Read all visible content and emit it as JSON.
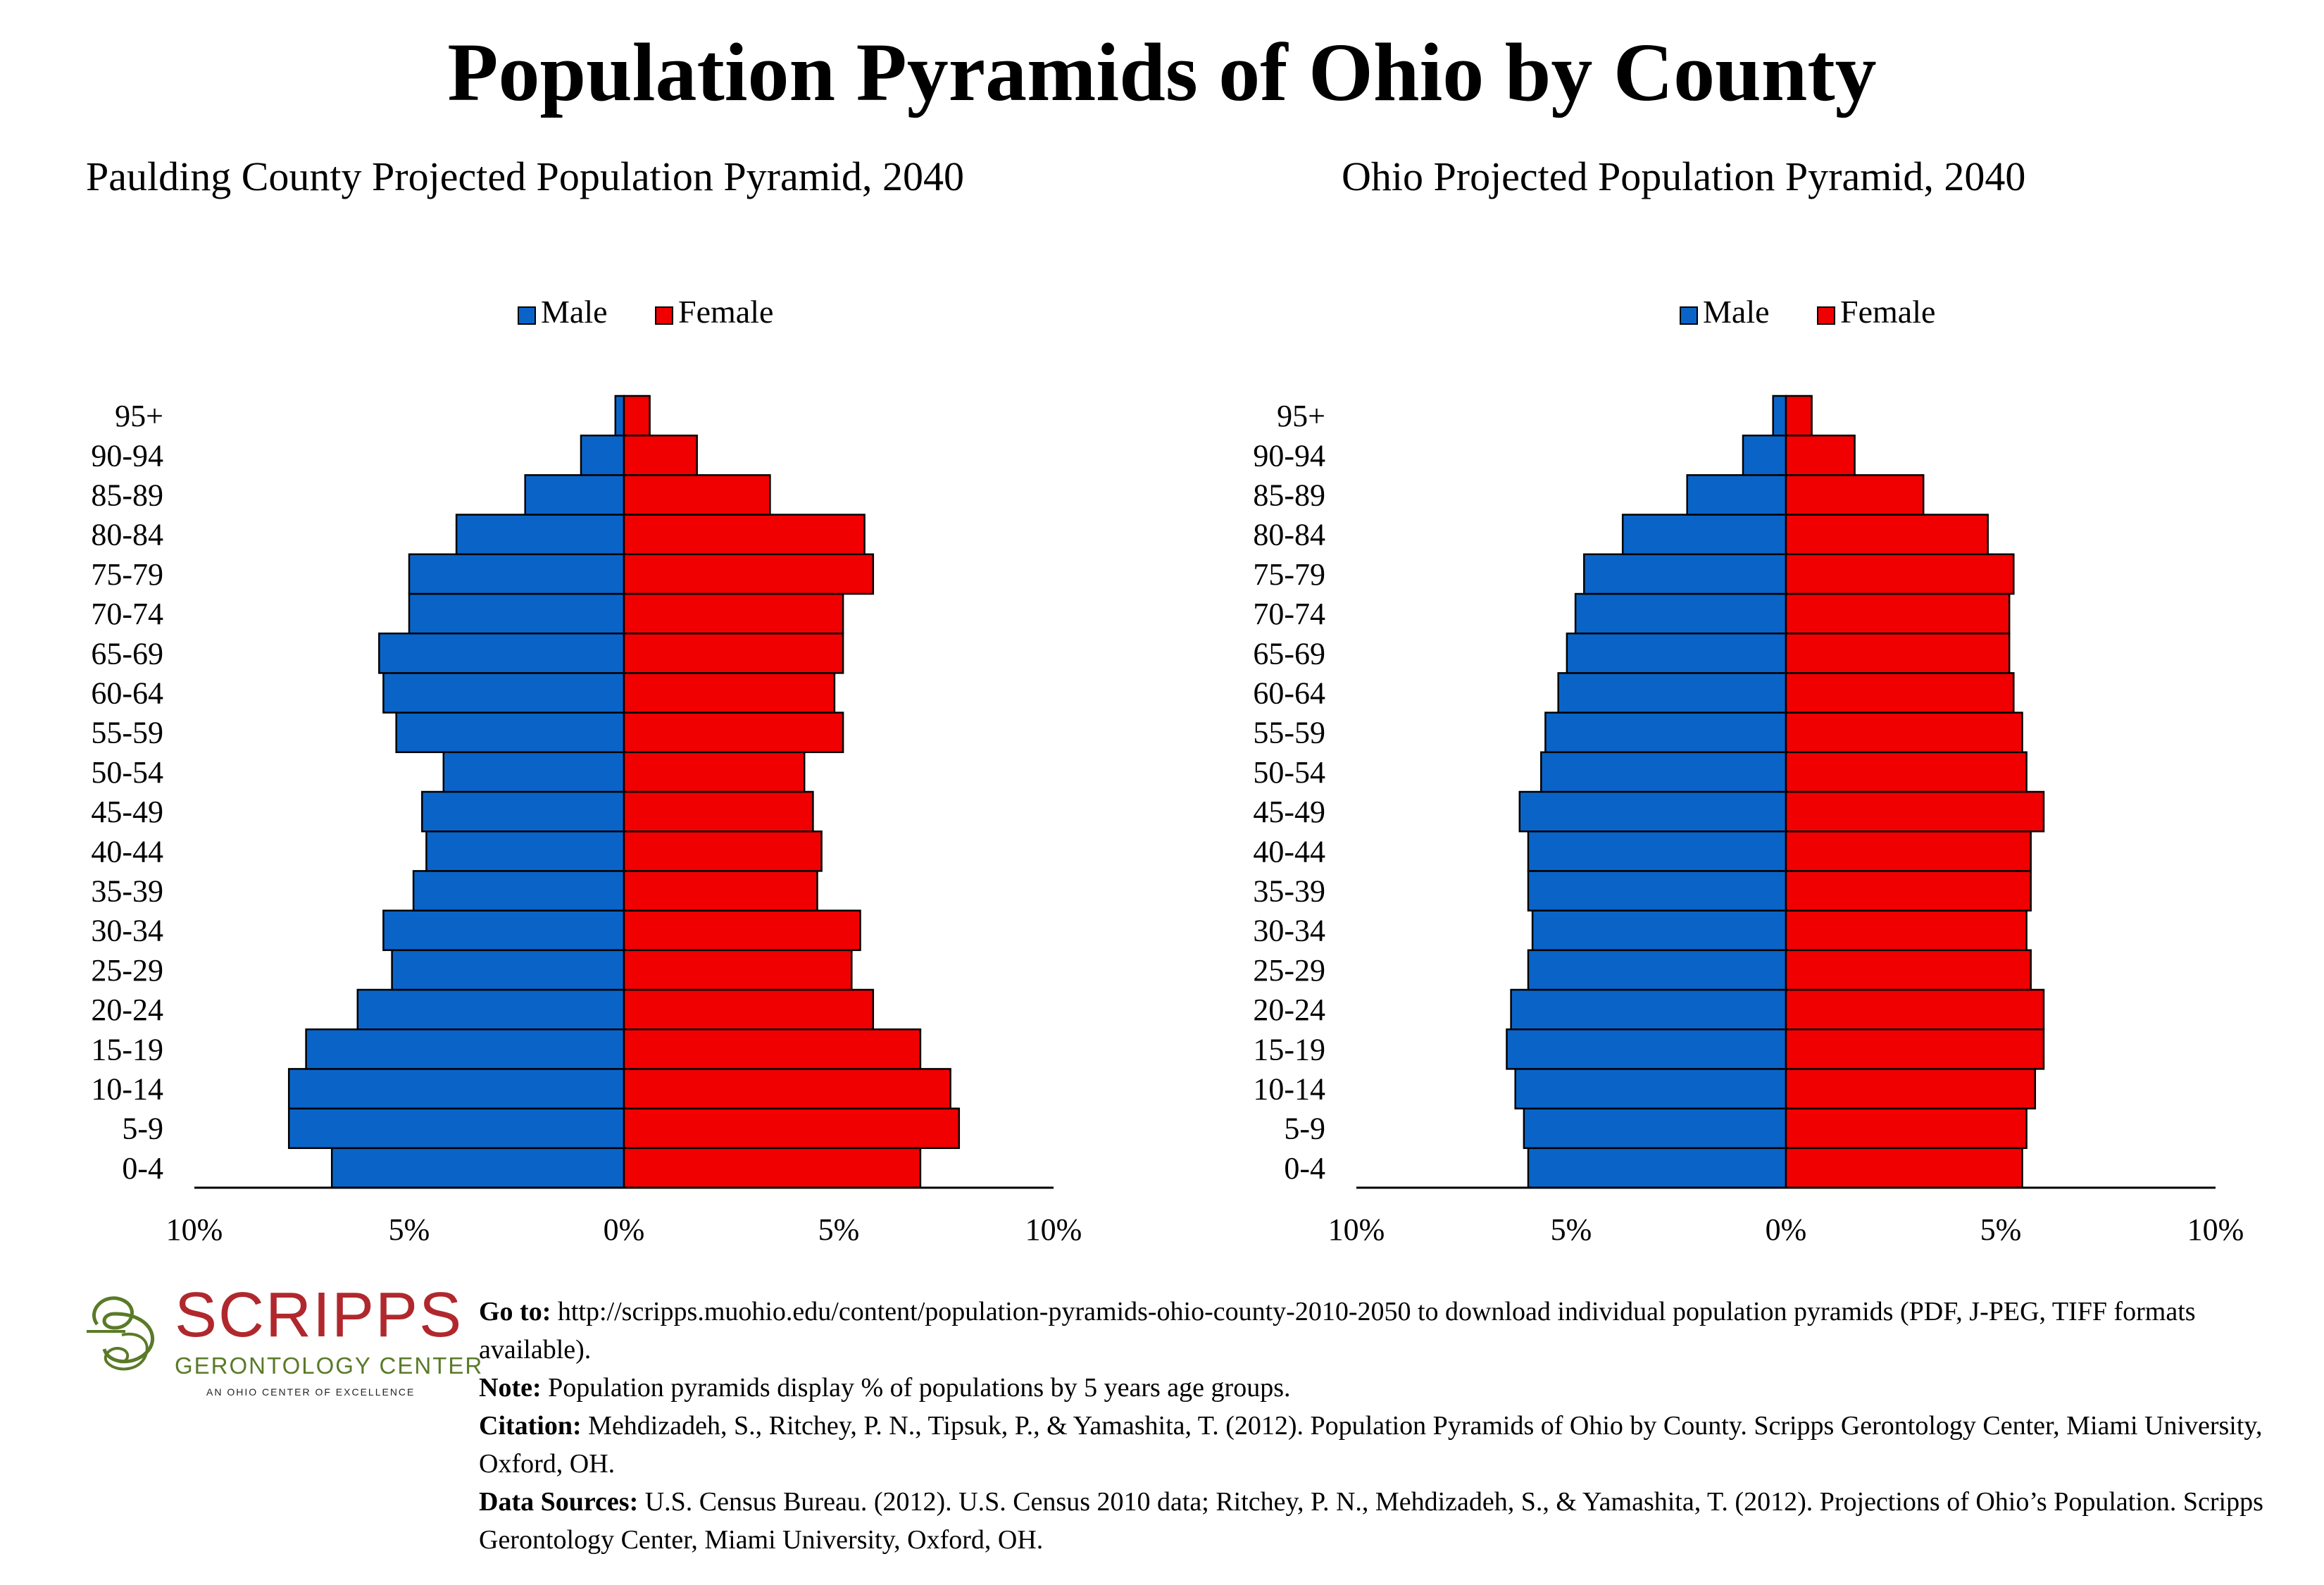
{
  "title": "Population Pyramids of Ohio by County",
  "colors": {
    "male": "#0a64c8",
    "female": "#f00000"
  },
  "chart_data": [
    {
      "type": "bar",
      "orientation": "population-pyramid",
      "title": "Paulding County Projected Population Pyramid, 2040",
      "categories": [
        "0-4",
        "5-9",
        "10-14",
        "15-19",
        "20-24",
        "25-29",
        "30-34",
        "35-39",
        "40-44",
        "45-49",
        "50-54",
        "55-59",
        "60-64",
        "65-69",
        "70-74",
        "75-79",
        "80-84",
        "85-89",
        "90-94",
        "95+"
      ],
      "series": [
        {
          "name": "Male",
          "values": [
            6.8,
            7.8,
            7.8,
            7.4,
            6.2,
            5.4,
            5.6,
            4.9,
            4.6,
            4.7,
            4.2,
            5.3,
            5.6,
            5.7,
            5.0,
            5.0,
            3.9,
            2.3,
            1.0,
            0.2
          ]
        },
        {
          "name": "Female",
          "values": [
            6.9,
            7.8,
            7.6,
            6.9,
            5.8,
            5.3,
            5.5,
            4.5,
            4.6,
            4.4,
            4.2,
            5.1,
            4.9,
            5.1,
            5.1,
            5.8,
            5.6,
            3.4,
            1.7,
            0.6
          ]
        }
      ],
      "xlim": [
        -10,
        10
      ],
      "tick_labels": [
        "10%",
        "5%",
        "0%",
        "5%",
        "10%"
      ],
      "legend": [
        "Male",
        "Female"
      ],
      "legend_position": "top-center"
    },
    {
      "type": "bar",
      "orientation": "population-pyramid",
      "title": "Ohio Projected Population Pyramid, 2040",
      "categories": [
        "0-4",
        "5-9",
        "10-14",
        "15-19",
        "20-24",
        "25-29",
        "30-34",
        "35-39",
        "40-44",
        "45-49",
        "50-54",
        "55-59",
        "60-64",
        "65-69",
        "70-74",
        "75-79",
        "80-84",
        "85-89",
        "90-94",
        "95+"
      ],
      "series": [
        {
          "name": "Male",
          "values": [
            6.0,
            6.1,
            6.3,
            6.5,
            6.4,
            6.0,
            5.9,
            6.0,
            6.0,
            6.2,
            5.7,
            5.6,
            5.3,
            5.1,
            4.9,
            4.7,
            3.8,
            2.3,
            1.0,
            0.3
          ]
        },
        {
          "name": "Female",
          "values": [
            5.5,
            5.6,
            5.8,
            6.0,
            6.0,
            5.7,
            5.6,
            5.7,
            5.7,
            6.0,
            5.6,
            5.5,
            5.3,
            5.2,
            5.2,
            5.3,
            4.7,
            3.2,
            1.6,
            0.6
          ]
        }
      ],
      "xlim": [
        -10,
        10
      ],
      "tick_labels": [
        "10%",
        "5%",
        "0%",
        "5%",
        "10%"
      ],
      "legend": [
        "Male",
        "Female"
      ],
      "legend_position": "top-center"
    }
  ],
  "logo": {
    "wordmark": "SCRIPPS",
    "subtitle": "GERONTOLOGY CENTER",
    "tagline": "AN OHIO CENTER OF EXCELLENCE"
  },
  "notes": {
    "goto_label": "Go to:",
    "goto_text": "http://scripps.muohio.edu/content/population-pyramids-ohio-county-2010-2050 to download individual population pyramids (PDF, J-PEG, TIFF formats available).",
    "note_label": "Note:",
    "note_text": "Population pyramids display % of populations by 5 years age groups.",
    "citation_label": "Citation:",
    "citation_text": "Mehdizadeh, S., Ritchey, P. N., Tipsuk, P., & Yamashita, T. (2012). Population Pyramids of Ohio by County. Scripps Gerontology Center, Miami University, Oxford, OH.",
    "sources_label": "Data Sources:",
    "sources_text": "U.S. Census Bureau. (2012). U.S. Census 2010 data; Ritchey, P. N., Mehdizadeh, S., & Yamashita, T. (2012). Projections of Ohio’s Population. Scripps Gerontology Center, Miami University, Oxford, OH."
  }
}
